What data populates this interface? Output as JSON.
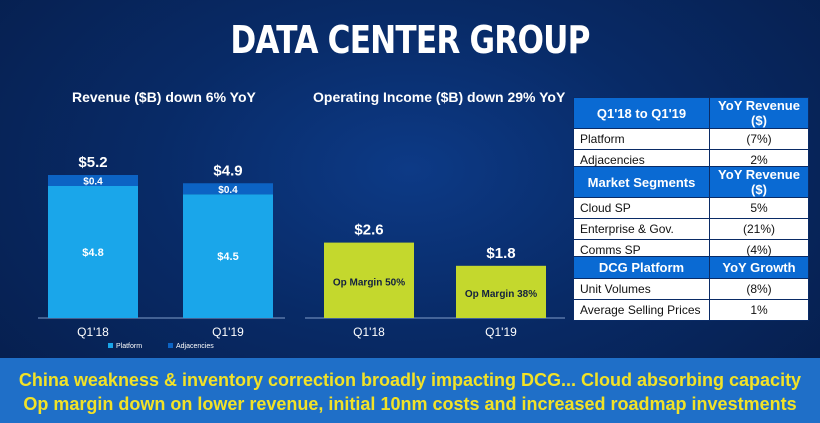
{
  "title": "DATA CENTER GROUP",
  "chart_data": [
    {
      "type": "bar",
      "stacked": true,
      "title": "Revenue ($B) down 6% YoY",
      "categories": [
        "Q1'18",
        "Q1'19"
      ],
      "series": [
        {
          "name": "Platform",
          "values": [
            4.8,
            4.5
          ],
          "labels": [
            "$4.8",
            "$4.5"
          ],
          "color": "#1aa6ea"
        },
        {
          "name": "Adjacencies",
          "values": [
            0.4,
            0.4
          ],
          "labels": [
            "$0.4",
            "$0.4"
          ],
          "color": "#0c63c4"
        }
      ],
      "totals": [
        "$5.2",
        "$4.9"
      ],
      "legend": "bottom"
    },
    {
      "type": "bar",
      "title": "Operating Income ($B) down 29% YoY",
      "categories": [
        "Q1'18",
        "Q1'19"
      ],
      "values": [
        2.6,
        1.8
      ],
      "value_labels": [
        "$2.6",
        "$1.8"
      ],
      "inner_labels": [
        "Op Margin 50%",
        "Op Margin 38%"
      ],
      "color": "#c4d82d"
    }
  ],
  "tables": [
    {
      "header": [
        "Q1'18 to Q1'19",
        "YoY Revenue ($)"
      ],
      "rows": [
        [
          "Platform",
          "(7%)"
        ],
        [
          "Adjacencies",
          "2%"
        ]
      ]
    },
    {
      "header": [
        "Market Segments",
        "YoY Revenue ($)"
      ],
      "rows": [
        [
          "Cloud SP",
          "5%"
        ],
        [
          "Enterprise & Gov.",
          "(21%)"
        ],
        [
          "Comms SP",
          "(4%)"
        ]
      ]
    },
    {
      "header": [
        "DCG Platform",
        "YoY Growth"
      ],
      "rows": [
        [
          "Unit Volumes",
          "(8%)"
        ],
        [
          "Average Selling Prices",
          "1%"
        ]
      ]
    }
  ],
  "bottom": {
    "line1": "China weakness & inventory correction broadly impacting DCG... Cloud absorbing capacity",
    "line2": "Op margin down on lower revenue, initial 10nm costs and increased roadmap investments"
  }
}
